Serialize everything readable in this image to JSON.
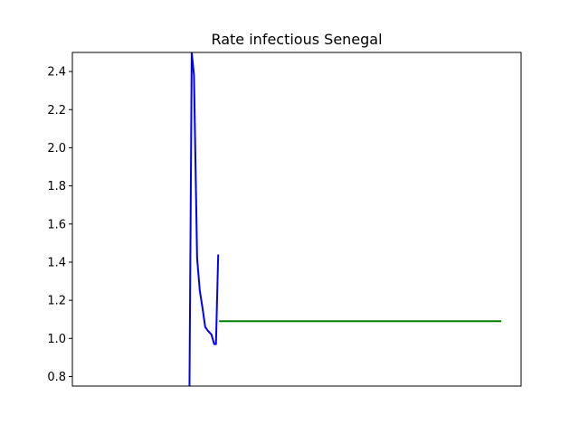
{
  "chart_data": {
    "type": "line",
    "title": "Rate infectious Senegal",
    "xlabel": "",
    "ylabel": "",
    "x_range": [
      0,
      100
    ],
    "ylim": [
      0.75,
      2.5
    ],
    "yticks": [
      0.8,
      1.0,
      1.2,
      1.4,
      1.6,
      1.8,
      2.0,
      2.2,
      2.4
    ],
    "ytick_labels": [
      "0.8",
      "1.0",
      "1.2",
      "1.4",
      "1.6",
      "1.8",
      "2.0",
      "2.2",
      "2.4"
    ],
    "grid": false,
    "series": [
      {
        "color": "#0000ff",
        "x": [
          26.1,
          26.6,
          27.1,
          27.8,
          28.4,
          29.0,
          29.6,
          30.2,
          31.0,
          31.6,
          32.0,
          32.5
        ],
        "y": [
          0.75,
          2.5,
          2.38,
          1.42,
          1.25,
          1.16,
          1.06,
          1.04,
          1.02,
          0.97,
          0.97,
          1.44
        ]
      },
      {
        "color": "#008000",
        "x": [
          32.7,
          95.6
        ],
        "y": [
          1.09,
          1.09
        ]
      }
    ]
  }
}
